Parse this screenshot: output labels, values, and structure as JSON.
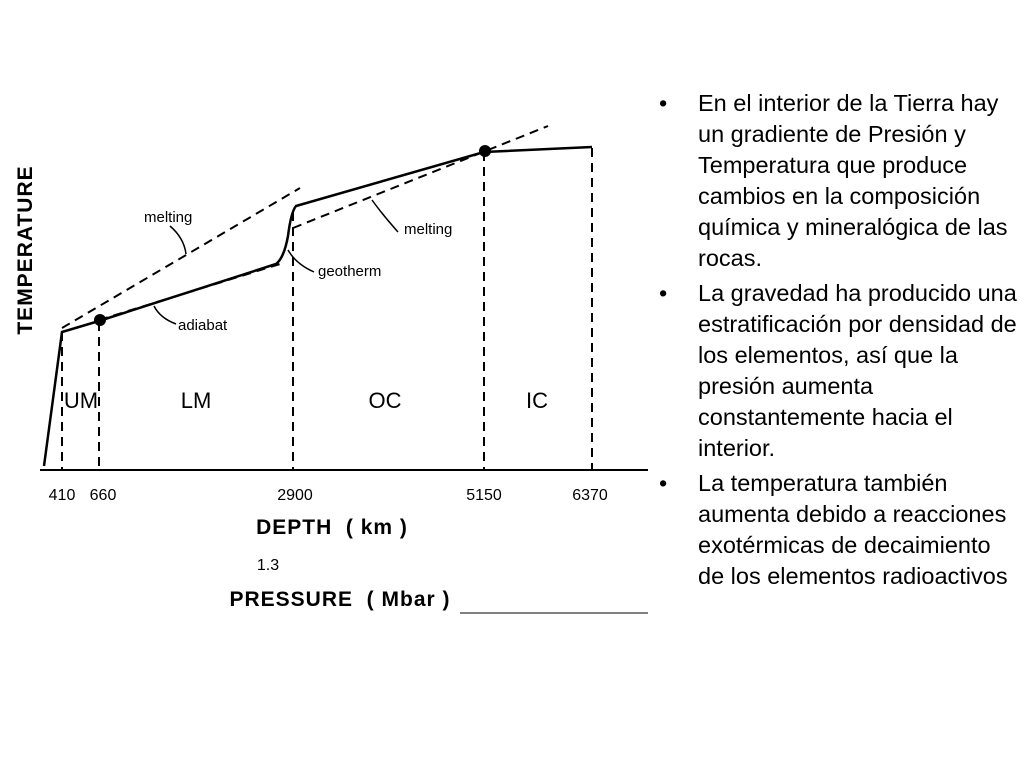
{
  "figure": {
    "y_axis_title": "TEMPERATURE",
    "x_axis_title": "DEPTH  ( km )",
    "pressure_value": "1.3",
    "pressure_title": "PRESSURE  ( Mbar )",
    "depth_ticks": [
      "410",
      "660",
      "2900",
      "5150",
      "6370"
    ],
    "zones": [
      "UM",
      "LM",
      "OC",
      "IC"
    ],
    "labels": {
      "melting_upper": "melting",
      "melting_lower": "melting",
      "geotherm": "geotherm",
      "adiabat": "adiabat"
    }
  },
  "bullets": [
    "En el interior de la Tierra hay un gradiente de Presión y Temperatura que produce cambios en la composición química y mineralógica de las rocas.",
    "La gravedad ha producido una estratificación por densidad de los elementos, así que la presión aumenta constantemente hacia el interior.",
    "La temperatura también aumenta debido a reacciones exotérmicas de decaimiento de los elementos radioactivos"
  ],
  "bullet_symbol": "•"
}
